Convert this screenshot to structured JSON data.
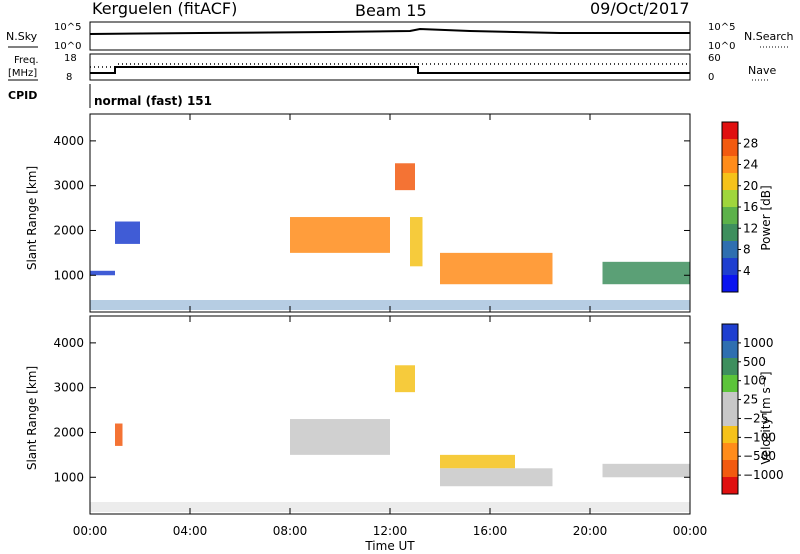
{
  "header": {
    "station": "Kerguelen (fitACF)",
    "beam": "Beam 15",
    "date": "09/Oct/2017"
  },
  "status_panels": {
    "nsky_label": "N.Sky",
    "nsearch_label": "N.Search",
    "nsky_ticks": [
      "10^5",
      "10^0"
    ],
    "freq_label_1": "Freq.",
    "freq_label_2": "[MHz]",
    "freq_ticks": [
      "18",
      "8"
    ],
    "nave_label": "Nave",
    "nave_ticks": [
      "60",
      "0"
    ],
    "cpid_label": "CPID",
    "cpid_value": "normal (fast) 151"
  },
  "time_axis": {
    "label": "Time UT",
    "ticks": [
      "00:00",
      "04:00",
      "08:00",
      "12:00",
      "16:00",
      "20:00",
      "00:00"
    ],
    "range_hours": [
      0,
      24
    ]
  },
  "chart_data": [
    {
      "type": "heatmap",
      "title": "Power",
      "ylabel": "Slant Range [km]",
      "yticks": [
        "4000",
        "3000",
        "2000",
        "1000"
      ],
      "ylim_km": [
        180,
        4600
      ],
      "colorbar_label": "Power [dB]",
      "colorbar_ticks": [
        "28",
        "24",
        "20",
        "16",
        "12",
        "8",
        "4"
      ],
      "colorbar_colors": [
        "#e01010",
        "#f25a10",
        "#ff8c1a",
        "#f5c21a",
        "#9fd63c",
        "#5cb24a",
        "#3e8f5e",
        "#2f6fb0",
        "#1f3fcf",
        "#0a14f0"
      ],
      "regions": [
        {
          "t": [
            8.0,
            12.0
          ],
          "r_km": [
            1500,
            2300
          ],
          "level_db": 22
        },
        {
          "t": [
            12.8,
            13.3
          ],
          "r_km": [
            1200,
            2300
          ],
          "level_db": 20
        },
        {
          "t": [
            12.2,
            13.0
          ],
          "r_km": [
            2900,
            3500
          ],
          "level_db": 26
        },
        {
          "t": [
            14.0,
            18.5
          ],
          "r_km": [
            800,
            1500
          ],
          "level_db": 22
        },
        {
          "t": [
            20.5,
            24.0
          ],
          "r_km": [
            800,
            1300
          ],
          "level_db": 10
        },
        {
          "t": [
            1.0,
            2.0
          ],
          "r_km": [
            1700,
            2200
          ],
          "level_db": 6
        },
        {
          "t": [
            0.0,
            1.0
          ],
          "r_km": [
            1000,
            1100
          ],
          "level_db": 6
        }
      ]
    },
    {
      "type": "heatmap",
      "title": "Velocity",
      "ylabel": "Slant Range [km]",
      "yticks": [
        "4000",
        "3000",
        "2000",
        "1000"
      ],
      "ylim_km": [
        180,
        4600
      ],
      "colorbar_label": "Velocity [m s⁻¹]",
      "colorbar_ticks": [
        "1000",
        "500",
        "100",
        "25",
        "−25",
        "−100",
        "−500",
        "−1000"
      ],
      "colorbar_colors": [
        "#1f3fcf",
        "#2f6fb0",
        "#3e8f5e",
        "#5cc43a",
        "#c8c8c8",
        "#c8c8c8",
        "#f5c21a",
        "#ff8c1a",
        "#f25a10",
        "#e01010"
      ],
      "regions": [
        {
          "t": [
            8.0,
            12.0
          ],
          "r_km": [
            1500,
            2300
          ],
          "velocity": 0
        },
        {
          "t": [
            14.0,
            17.0
          ],
          "r_km": [
            1200,
            1500
          ],
          "velocity": -100
        },
        {
          "t": [
            14.0,
            18.5
          ],
          "r_km": [
            800,
            1200
          ],
          "velocity": 0
        },
        {
          "t": [
            20.5,
            24.0
          ],
          "r_km": [
            1000,
            1300
          ],
          "velocity": 0
        },
        {
          "t": [
            12.2,
            13.0
          ],
          "r_km": [
            2900,
            3500
          ],
          "velocity": -300
        },
        {
          "t": [
            1.0,
            1.3
          ],
          "r_km": [
            1700,
            2200
          ],
          "velocity": -600
        }
      ]
    }
  ]
}
